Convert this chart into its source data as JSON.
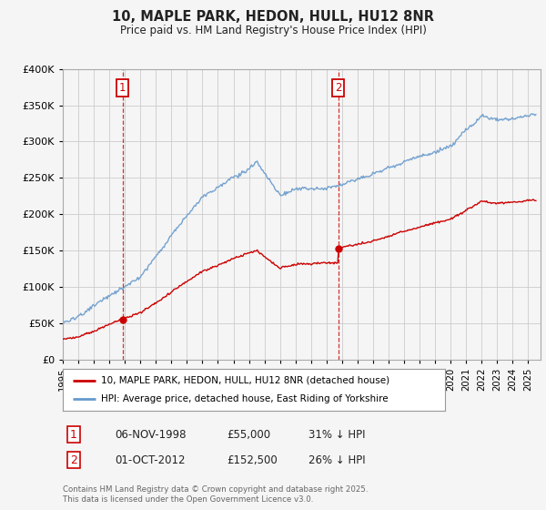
{
  "title": "10, MAPLE PARK, HEDON, HULL, HU12 8NR",
  "subtitle": "Price paid vs. HM Land Registry's House Price Index (HPI)",
  "sale1_date": "06-NOV-1998",
  "sale1_price": 55000,
  "sale1_year": 1998.85,
  "sale2_date": "01-OCT-2012",
  "sale2_price": 152500,
  "sale2_year": 2012.75,
  "legend_line1": "10, MAPLE PARK, HEDON, HULL, HU12 8NR (detached house)",
  "legend_line2": "HPI: Average price, detached house, East Riding of Yorkshire",
  "footer": "Contains HM Land Registry data © Crown copyright and database right 2025.\nThis data is licensed under the Open Government Licence v3.0.",
  "red_color": "#cc0000",
  "blue_color": "#6699cc",
  "background_color": "#f5f5f5",
  "grid_color": "#cccccc",
  "ylim": [
    0,
    400000
  ],
  "xlim_start": 1995.0,
  "xlim_end": 2025.8
}
